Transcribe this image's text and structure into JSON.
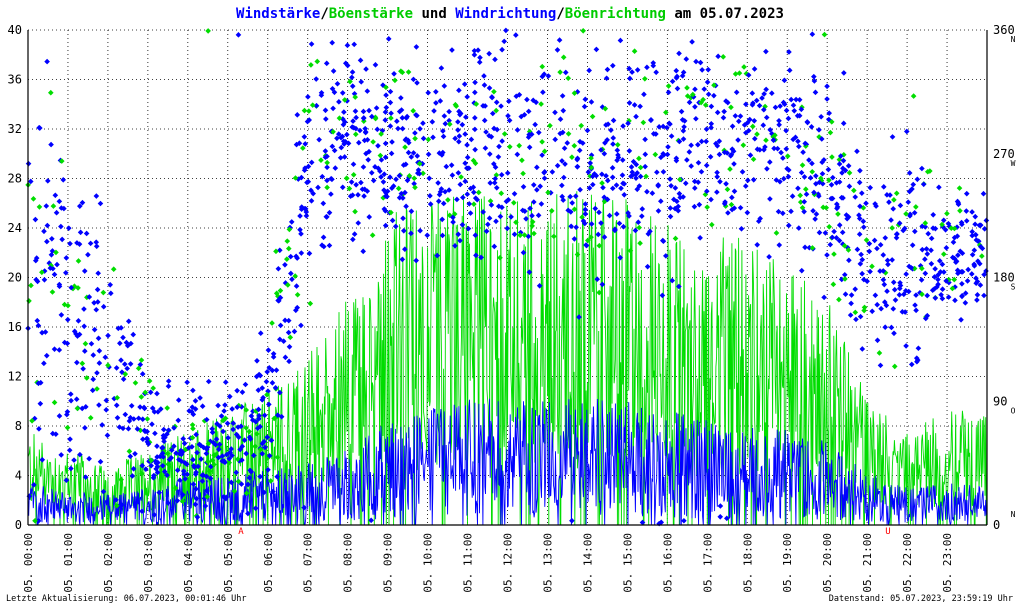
{
  "title": {
    "parts": [
      {
        "text": "Windstärke",
        "color": "#0000ff"
      },
      {
        "text": "/",
        "color": "#000000"
      },
      {
        "text": "Böenstärke",
        "color": "#00cc00"
      },
      {
        "text": " und ",
        "color": "#000000"
      },
      {
        "text": "Windrichtung",
        "color": "#0000ff"
      },
      {
        "text": "/",
        "color": "#000000"
      },
      {
        "text": "Böenrichtung",
        "color": "#00cc00"
      },
      {
        "text": " am 05.07.2023",
        "color": "#000000"
      }
    ]
  },
  "footer": {
    "left": "Letzte Aktualisierung: 06.07.2023, 00:01:46 Uhr",
    "right": "Datenstand: 05.07.2023, 23:59:19 Uhr"
  },
  "chart_data": {
    "type": "line",
    "xlim": [
      0,
      24
    ],
    "ylim": [
      0,
      40
    ],
    "y2lim": [
      0,
      360
    ],
    "grid": true,
    "colors": {
      "wind": "#0000ff",
      "gust": "#00dd00",
      "axis": "#000000",
      "grid": "#000000"
    },
    "x_tick_labels": [
      "05. 00:00",
      "05. 01:00",
      "05. 02:00",
      "05. 03:00",
      "05. 04:00",
      "05. 05:00",
      "05. 06:00",
      "05. 07:00",
      "05. 08:00",
      "05. 09:00",
      "05. 10:00",
      "05. 11:00",
      "05. 12:00",
      "05. 13:00",
      "05. 14:00",
      "05. 15:00",
      "05. 16:00",
      "05. 17:00",
      "05. 18:00",
      "05. 19:00",
      "05. 20:00",
      "05. 21:00",
      "05. 22:00",
      "05. 23:00"
    ],
    "y_ticks": [
      0,
      4,
      8,
      12,
      16,
      20,
      24,
      28,
      32,
      36,
      40
    ],
    "y2_ticks": [
      0,
      90,
      180,
      270,
      360
    ],
    "y2_direction_labels": [
      {
        "value": 0,
        "label": "N"
      },
      {
        "value": 90,
        "label": "O"
      },
      {
        "value": 180,
        "label": "S"
      },
      {
        "value": 270,
        "label": "W"
      },
      {
        "value": 360,
        "label": "N"
      }
    ],
    "markers": [
      {
        "x": 5.33,
        "label": "A"
      },
      {
        "x": 21.52,
        "label": "U"
      }
    ],
    "hourly_profile": [
      {
        "hour": 0,
        "wind": 2.0,
        "gust": 5,
        "dir": 200,
        "spread": 110
      },
      {
        "hour": 1,
        "wind": 1.6,
        "gust": 4,
        "dir": 140,
        "spread": 80
      },
      {
        "hour": 2,
        "wind": 1.5,
        "gust": 3,
        "dir": 120,
        "spread": 70
      },
      {
        "hour": 3,
        "wind": 1.8,
        "gust": 4,
        "dir": 60,
        "spread": 30
      },
      {
        "hour": 4,
        "wind": 2.2,
        "gust": 5,
        "dir": 50,
        "spread": 30
      },
      {
        "hour": 5,
        "wind": 2.4,
        "gust": 6,
        "dir": 50,
        "spread": 30
      },
      {
        "hour": 6,
        "wind": 2.6,
        "gust": 7,
        "dir": 80,
        "spread": 40
      },
      {
        "hour": 7,
        "wind": 3.0,
        "gust": 9,
        "dir": 260,
        "spread": 60
      },
      {
        "hour": 8,
        "wind": 3.6,
        "gust": 12,
        "dir": 290,
        "spread": 40
      },
      {
        "hour": 9,
        "wind": 5.0,
        "gust": 17,
        "dir": 270,
        "spread": 45
      },
      {
        "hour": 10,
        "wind": 5.5,
        "gust": 17,
        "dir": 280,
        "spread": 45
      },
      {
        "hour": 11,
        "wind": 6.0,
        "gust": 18,
        "dir": 270,
        "spread": 50
      },
      {
        "hour": 12,
        "wind": 6.0,
        "gust": 17,
        "dir": 260,
        "spread": 50
      },
      {
        "hour": 13,
        "wind": 6.0,
        "gust": 18,
        "dir": 270,
        "spread": 50
      },
      {
        "hour": 14,
        "wind": 6.0,
        "gust": 18,
        "dir": 260,
        "spread": 50
      },
      {
        "hour": 15,
        "wind": 6.0,
        "gust": 17,
        "dir": 270,
        "spread": 50
      },
      {
        "hour": 16,
        "wind": 5.5,
        "gust": 16,
        "dir": 270,
        "spread": 50
      },
      {
        "hour": 17,
        "wind": 5.0,
        "gust": 15,
        "dir": 280,
        "spread": 45
      },
      {
        "hour": 18,
        "wind": 5.0,
        "gust": 15,
        "dir": 280,
        "spread": 45
      },
      {
        "hour": 19,
        "wind": 4.5,
        "gust": 14,
        "dir": 280,
        "spread": 45
      },
      {
        "hour": 20,
        "wind": 4.0,
        "gust": 12,
        "dir": 250,
        "spread": 50
      },
      {
        "hour": 21,
        "wind": 2.5,
        "gust": 7,
        "dir": 190,
        "spread": 40
      },
      {
        "hour": 22,
        "wind": 1.8,
        "gust": 5,
        "dir": 200,
        "spread": 60
      },
      {
        "hour": 23,
        "wind": 2.0,
        "gust": 6,
        "dir": 200,
        "spread": 30
      }
    ]
  }
}
